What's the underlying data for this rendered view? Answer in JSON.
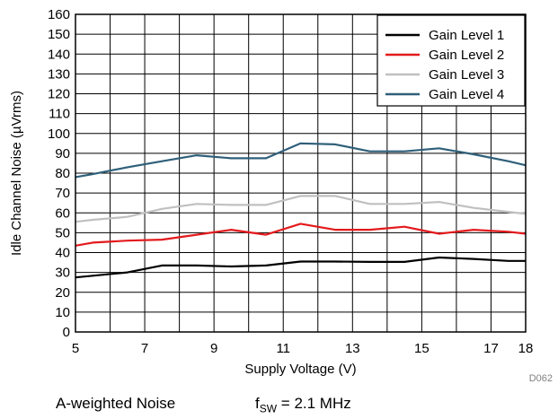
{
  "chart_data": {
    "type": "line",
    "xlabel": "Supply Voltage (V)",
    "ylabel": "Idle Channel Noise (µVrms)",
    "xlim": [
      5,
      18
    ],
    "ylim": [
      0,
      160
    ],
    "x_ticks": [
      5,
      7,
      9,
      11,
      13,
      15,
      17,
      18
    ],
    "y_ticks": [
      0,
      10,
      20,
      30,
      40,
      50,
      60,
      70,
      80,
      90,
      100,
      110,
      120,
      130,
      140,
      150,
      160
    ],
    "grid": true,
    "legend_position": "top-right",
    "series": [
      {
        "name": "Gain Level 1",
        "color": "#000000",
        "points": [
          [
            5,
            27.5
          ],
          [
            6.5,
            30
          ],
          [
            7.5,
            33.5
          ],
          [
            8.5,
            33.5
          ],
          [
            9.5,
            33
          ],
          [
            10.5,
            33.5
          ],
          [
            11.5,
            35.5
          ],
          [
            12.5,
            35.5
          ],
          [
            13.5,
            35.3
          ],
          [
            14.5,
            35.3
          ],
          [
            15.5,
            37.5
          ],
          [
            16.5,
            36.8
          ],
          [
            17.5,
            35.8
          ],
          [
            18,
            35.8
          ]
        ]
      },
      {
        "name": "Gain Level 2",
        "color": "#e31a1c",
        "points": [
          [
            5,
            43.5
          ],
          [
            5.5,
            45
          ],
          [
            6.5,
            46
          ],
          [
            7.5,
            46.5
          ],
          [
            8.5,
            49
          ],
          [
            9.5,
            51.5
          ],
          [
            10.5,
            49
          ],
          [
            11.5,
            54.5
          ],
          [
            12.5,
            51.5
          ],
          [
            13.5,
            51.5
          ],
          [
            14.5,
            53
          ],
          [
            15.5,
            49.5
          ],
          [
            16.5,
            51.5
          ],
          [
            17.5,
            50.5
          ],
          [
            18,
            49.5
          ]
        ]
      },
      {
        "name": "Gain Level 3",
        "color": "#c0c0c0",
        "points": [
          [
            5,
            55.5
          ],
          [
            5.5,
            56.5
          ],
          [
            6.5,
            58
          ],
          [
            7.5,
            62
          ],
          [
            8.5,
            64.5
          ],
          [
            9.5,
            64
          ],
          [
            10.5,
            64
          ],
          [
            11.5,
            68.5
          ],
          [
            12.5,
            68.5
          ],
          [
            13.5,
            64.5
          ],
          [
            14.5,
            64.5
          ],
          [
            15.5,
            65.5
          ],
          [
            16.5,
            62.5
          ],
          [
            17.5,
            60.5
          ],
          [
            18,
            59.5
          ]
        ]
      },
      {
        "name": "Gain Level 4",
        "color": "#2f5f7a",
        "points": [
          [
            5,
            78
          ],
          [
            5.5,
            79.5
          ],
          [
            6.5,
            83
          ],
          [
            7.5,
            86
          ],
          [
            8.5,
            89
          ],
          [
            9.5,
            87.5
          ],
          [
            10.5,
            87.5
          ],
          [
            11.5,
            95
          ],
          [
            12.5,
            94.5
          ],
          [
            13.5,
            91
          ],
          [
            14.5,
            91
          ],
          [
            15.5,
            92.5
          ],
          [
            16.5,
            89.5
          ],
          [
            17.5,
            86
          ],
          [
            18,
            84
          ]
        ]
      }
    ]
  },
  "figure_id": "D062",
  "caption": {
    "left": "A-weighted Noise",
    "f_symbol": "f",
    "f_subscript": "SW",
    "f_value": " = 2.1 MHz"
  }
}
